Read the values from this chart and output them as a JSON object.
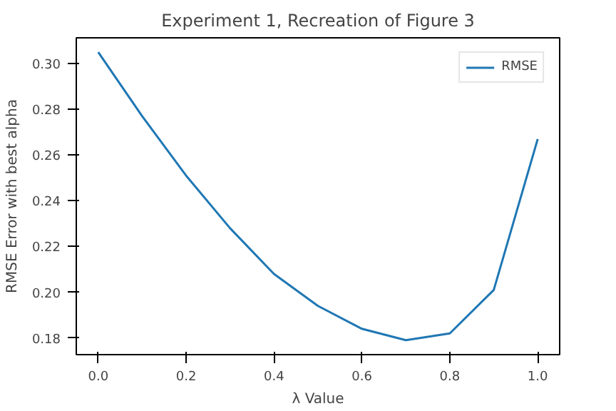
{
  "chart_data": {
    "type": "line",
    "title": "Experiment 1, Recreation of Figure 3",
    "xlabel": "λ Value",
    "ylabel": "RMSE Error with best alpha",
    "x": [
      0.0,
      0.1,
      0.2,
      0.3,
      0.4,
      0.5,
      0.6,
      0.7,
      0.8,
      0.9,
      1.0
    ],
    "series": [
      {
        "name": "RMSE",
        "color": "#1f77b4",
        "values": [
          0.305,
          0.277,
          0.251,
          0.228,
          0.208,
          0.194,
          0.184,
          0.179,
          0.182,
          0.201,
          0.267
        ]
      }
    ],
    "xlim": [
      -0.05,
      1.05
    ],
    "ylim": [
      0.1727,
      0.3113
    ],
    "xticks": [
      {
        "value": 0,
        "label": "0.0"
      },
      {
        "value": 0.2,
        "label": "0.2"
      },
      {
        "value": 0.4,
        "label": "0.4"
      },
      {
        "value": 0.6,
        "label": "0.6"
      },
      {
        "value": 0.8,
        "label": "0.8"
      },
      {
        "value": 1,
        "label": "1.0"
      }
    ],
    "yticks": [
      {
        "value": 0.18,
        "label": "0.18"
      },
      {
        "value": 0.2,
        "label": "0.20"
      },
      {
        "value": 0.22,
        "label": "0.22"
      },
      {
        "value": 0.24,
        "label": "0.24"
      },
      {
        "value": 0.26,
        "label": "0.26"
      },
      {
        "value": 0.28,
        "label": "0.28"
      },
      {
        "value": 0.3,
        "label": "0.30"
      }
    ],
    "legend": "top right",
    "grid": false
  }
}
